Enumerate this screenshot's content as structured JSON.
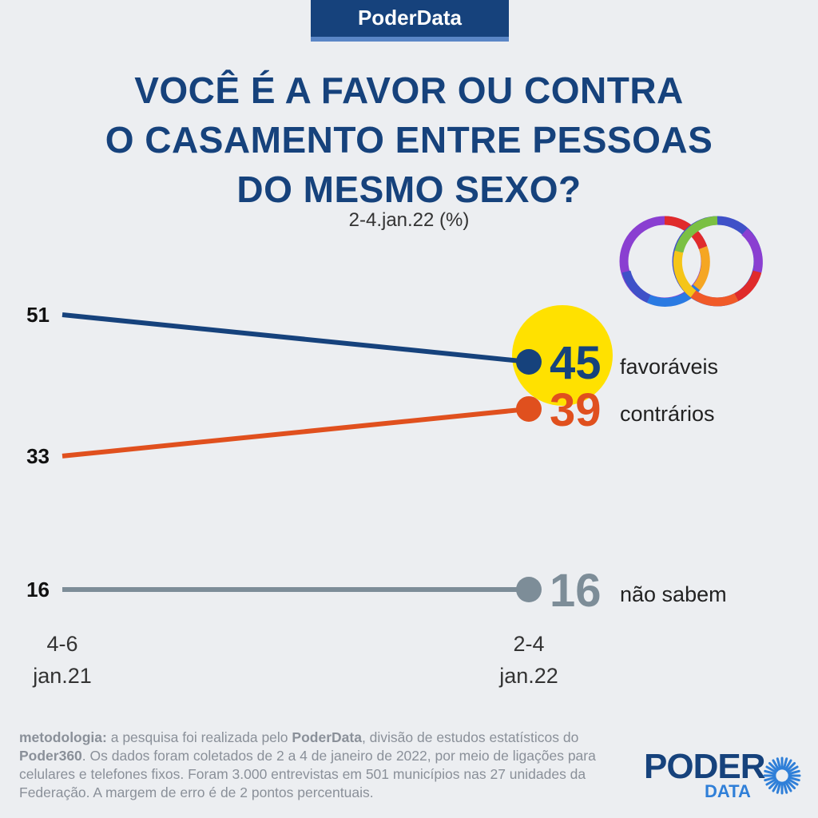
{
  "brand": "PoderData",
  "title_lines": [
    "VOCÊ É A FAVOR OU CONTRA",
    "O CASAMENTO ENTRE PESSOAS",
    "DO MESMO SEXO?"
  ],
  "subtitle": "2-4.jan.22 (%)",
  "colors": {
    "navy": "#16427c",
    "orange": "#e0501e",
    "gray": "#7d8d98",
    "highlight": "#ffe100",
    "background": "#eceef1"
  },
  "chart_data": {
    "type": "line",
    "x": [
      "4-6 jan.21",
      "2-4 jan.22"
    ],
    "x_tick_labels": [
      [
        "4-6",
        "jan.21"
      ],
      [
        "2-4",
        "jan.22"
      ]
    ],
    "series": [
      {
        "name": "favoráveis",
        "values": [
          51,
          45
        ],
        "color": "#16427c",
        "highlight": true
      },
      {
        "name": "contrários",
        "values": [
          33,
          39
        ],
        "color": "#e0501e"
      },
      {
        "name": "não sabem",
        "values": [
          16,
          16
        ],
        "color": "#7d8d98"
      }
    ],
    "title": "VOCÊ É A FAVOR OU CONTRA O CASAMENTO ENTRE PESSOAS DO MESMO SEXO?",
    "subtitle": "2-4.jan.22 (%)",
    "grid": false
  },
  "methodology": {
    "label": "metodologia:",
    "t1": " a pesquisa foi realizada pelo ",
    "b1": "PoderData",
    "t2": ", divisão de estudos estatísticos do ",
    "b2": "Poder360",
    "t3": ". Os dados foram coletados de 2 a 4 de janeiro de 2022, por meio de ligações para celulares e telefones fixos. Foram 3.000 entrevistas em 501 municípios nas 27 unidades da Federação. A margem de erro é de 2 pontos percentuais."
  },
  "logo": {
    "poder": "PODER",
    "data": "DATA"
  }
}
